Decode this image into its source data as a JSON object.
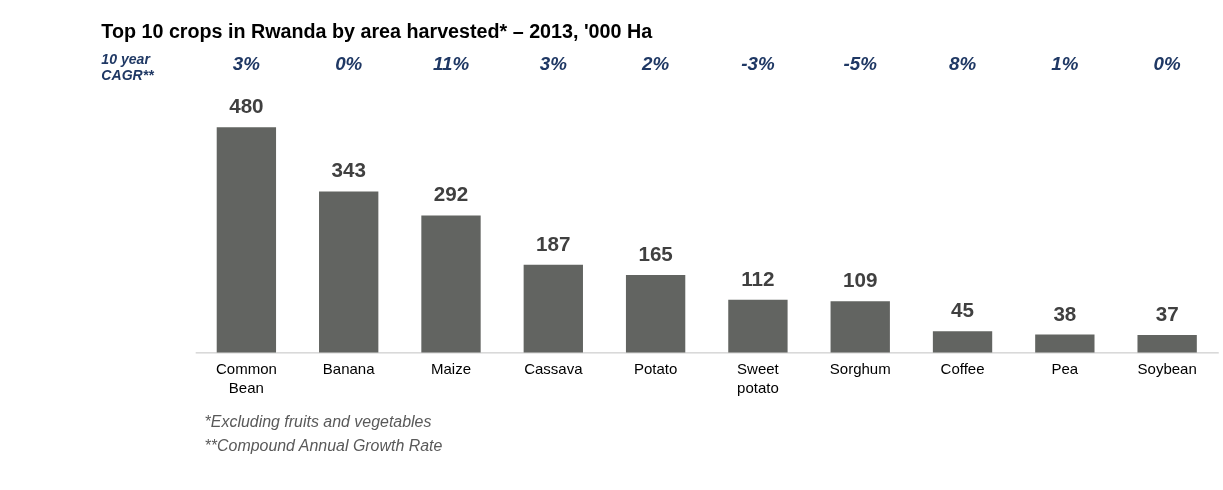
{
  "chart_data": {
    "type": "bar",
    "title": "Top 10 crops in Rwanda by area harvested* – 2013, '000 Ha",
    "categories": [
      "Common Bean",
      "Banana",
      "Maize",
      "Cassava",
      "Potato",
      "Sweet potato",
      "Sorghum",
      "Coffee",
      "Pea",
      "Soybean"
    ],
    "values": [
      480,
      343,
      292,
      187,
      165,
      112,
      109,
      45,
      38,
      37
    ],
    "color": "#626461",
    "data_labels": true,
    "annotations": [
      "10 year CAGR**",
      "3%",
      "0%",
      "11%",
      "3%",
      "2%",
      "-3%",
      "-5%",
      "8%",
      "1%",
      "0%",
      "*Excluding fruits and vegetables",
      "**Compound Annual Growth Rate"
    ]
  }
}
